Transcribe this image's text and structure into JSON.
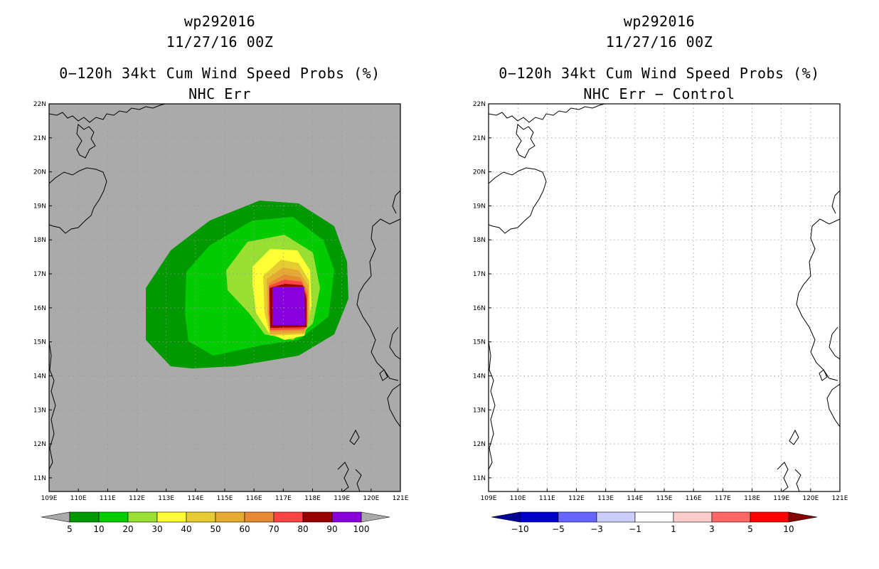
{
  "panels": [
    {
      "title": "wp292016",
      "date": "11/27/16 00Z",
      "product": "0−120h 34kt Cum Wind Speed Probs (%)",
      "subtitle": "NHC Err",
      "colorbar": {
        "labels": [
          "5",
          "10",
          "20",
          "30",
          "40",
          "50",
          "60",
          "70",
          "80",
          "90",
          "100"
        ],
        "colors": [
          "#009900",
          "#00cc00",
          "#99e033",
          "#ffff33",
          "#e6cc33",
          "#e6aa33",
          "#e68a33",
          "#ff4444",
          "#990000",
          "#8800dd"
        ],
        "end_color": "#aaaaaa"
      }
    },
    {
      "title": "wp292016",
      "date": "11/27/16 00Z",
      "product": "0−120h 34kt Cum Wind Speed Probs (%)",
      "subtitle": "NHC Err − Control",
      "colorbar": {
        "labels": [
          "−10",
          "−5",
          "−3",
          "−1",
          "1",
          "3",
          "5",
          "10"
        ],
        "colors": [
          "#0000cc",
          "#6666ff",
          "#ccccff",
          "#ffffff",
          "#ffcccc",
          "#ff6666",
          "#ff0000"
        ],
        "end_left": "#000099",
        "end_right": "#880000"
      }
    }
  ],
  "map": {
    "lon_labels": [
      "109E",
      "110E",
      "111E",
      "112E",
      "113E",
      "114E",
      "115E",
      "116E",
      "117E",
      "118E",
      "119E",
      "120E",
      "121E"
    ],
    "lat_labels": [
      "22N",
      "21N",
      "20N",
      "19N",
      "18N",
      "17N",
      "16N",
      "15N",
      "14N",
      "13N",
      "12N",
      "11N"
    ],
    "lon_range": [
      109,
      121
    ],
    "lat_range": [
      10.6,
      22
    ]
  },
  "colors": {
    "land_bg_left": "#aaaaaa",
    "bg_right": "#ffffff",
    "grid": "#999999"
  }
}
